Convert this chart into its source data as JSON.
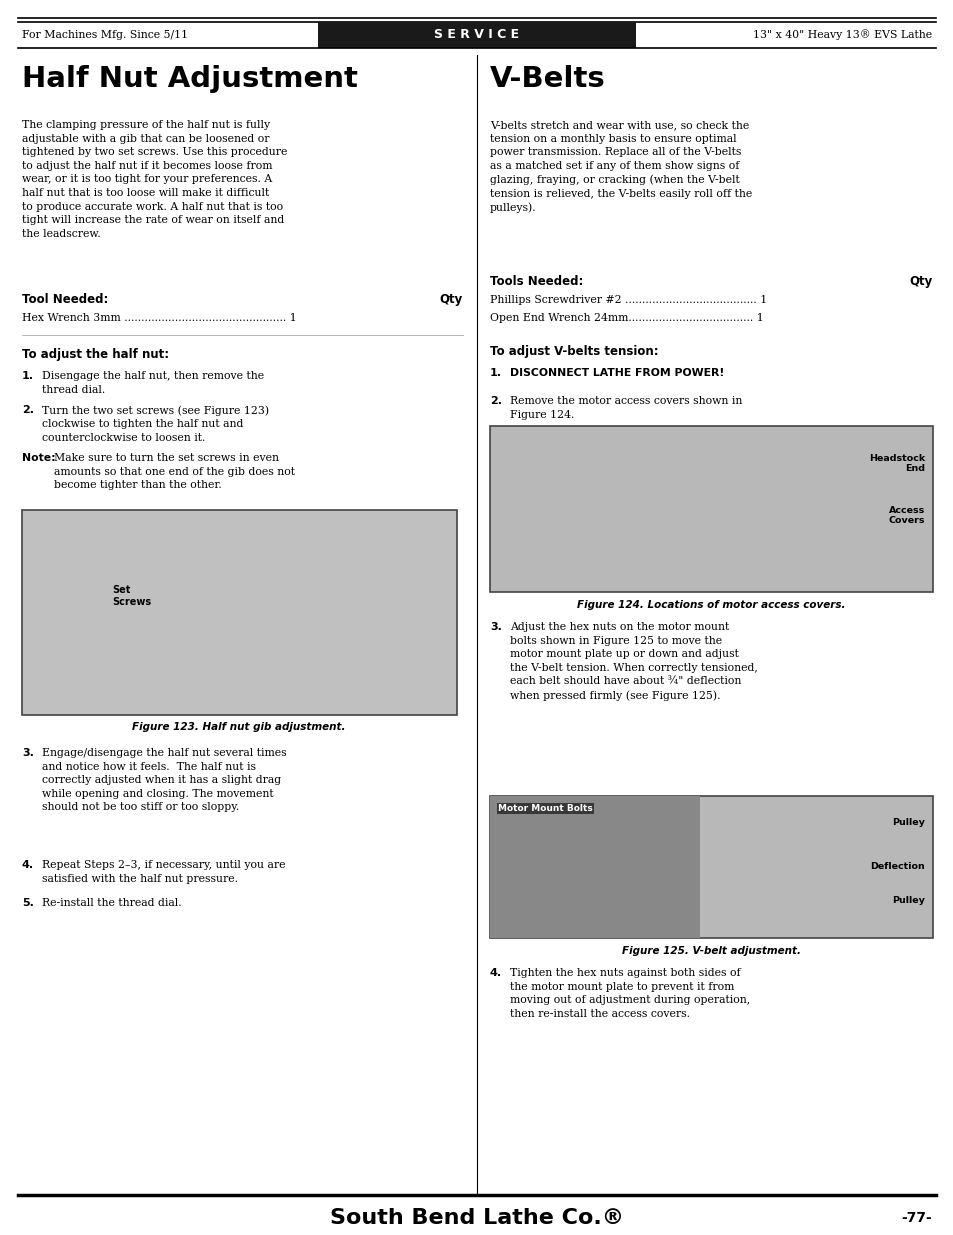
{
  "page_width": 9.54,
  "page_height": 12.35,
  "bg_color": "#ffffff",
  "header_bg": "#1a1a1a",
  "header_text_color": "#ffffff",
  "header_left": "For Machines Mfg. Since 5/11",
  "header_center": "S E R V I C E",
  "header_right": "13\" x 40\" Heavy 13® EVS Lathe",
  "footer_text": "South Bend Lathe Co.®",
  "footer_page": "-77-",
  "title_left": "Half Nut Adjustment",
  "title_right": "V-Belts",
  "left_tool_header": "Tool Needed:",
  "left_tool_qty": "Qty",
  "left_tools": [
    "Hex Wrench 3mm ................................................ 1"
  ],
  "right_tool_header": "Tools Needed:",
  "right_tool_qty": "Qty",
  "right_tools": [
    "Phillips Screwdriver #2 ....................................... 1",
    "Open End Wrench 24mm..................................... 1"
  ],
  "left_adjust_header": "To adjust the half nut:",
  "right_adjust_header": "To adjust V-belts tension:",
  "fig123_caption": "Figure 123. Half nut gib adjustment.",
  "fig124_caption": "Figure 124. Locations of motor access covers.",
  "fig125_caption": "Figure 125. V-belt adjustment."
}
